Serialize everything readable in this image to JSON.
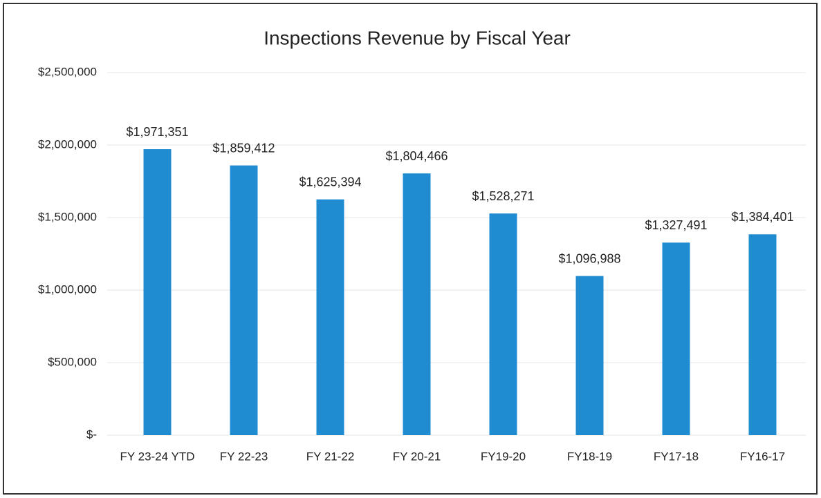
{
  "chart_data": {
    "type": "bar",
    "title": "Inspections Revenue by Fiscal Year",
    "categories": [
      "FY 23-24 YTD",
      "FY 22-23",
      "FY 21-22",
      "FY 20-21",
      "FY19-20",
      "FY18-19",
      "FY17-18",
      "FY16-17"
    ],
    "values": [
      1971351,
      1859412,
      1625394,
      1804466,
      1528271,
      1096988,
      1327491,
      1384401
    ],
    "value_labels": [
      "$1,971,351",
      "$1,859,412",
      "$1,625,394",
      "$1,804,466",
      "$1,528,271",
      "$1,096,988",
      "$1,327,491",
      "$1,384,401"
    ],
    "color": "#1f8bd0",
    "ylim": [
      0,
      2500000
    ],
    "yticks": [
      {
        "value": 0,
        "label": "$-"
      },
      {
        "value": 500000,
        "label": "$500,000"
      },
      {
        "value": 1000000,
        "label": "$1,000,000"
      },
      {
        "value": 1500000,
        "label": "$1,500,000"
      },
      {
        "value": 2000000,
        "label": "$2,000,000"
      },
      {
        "value": 2500000,
        "label": "$2,500,000"
      }
    ],
    "grid": true
  }
}
